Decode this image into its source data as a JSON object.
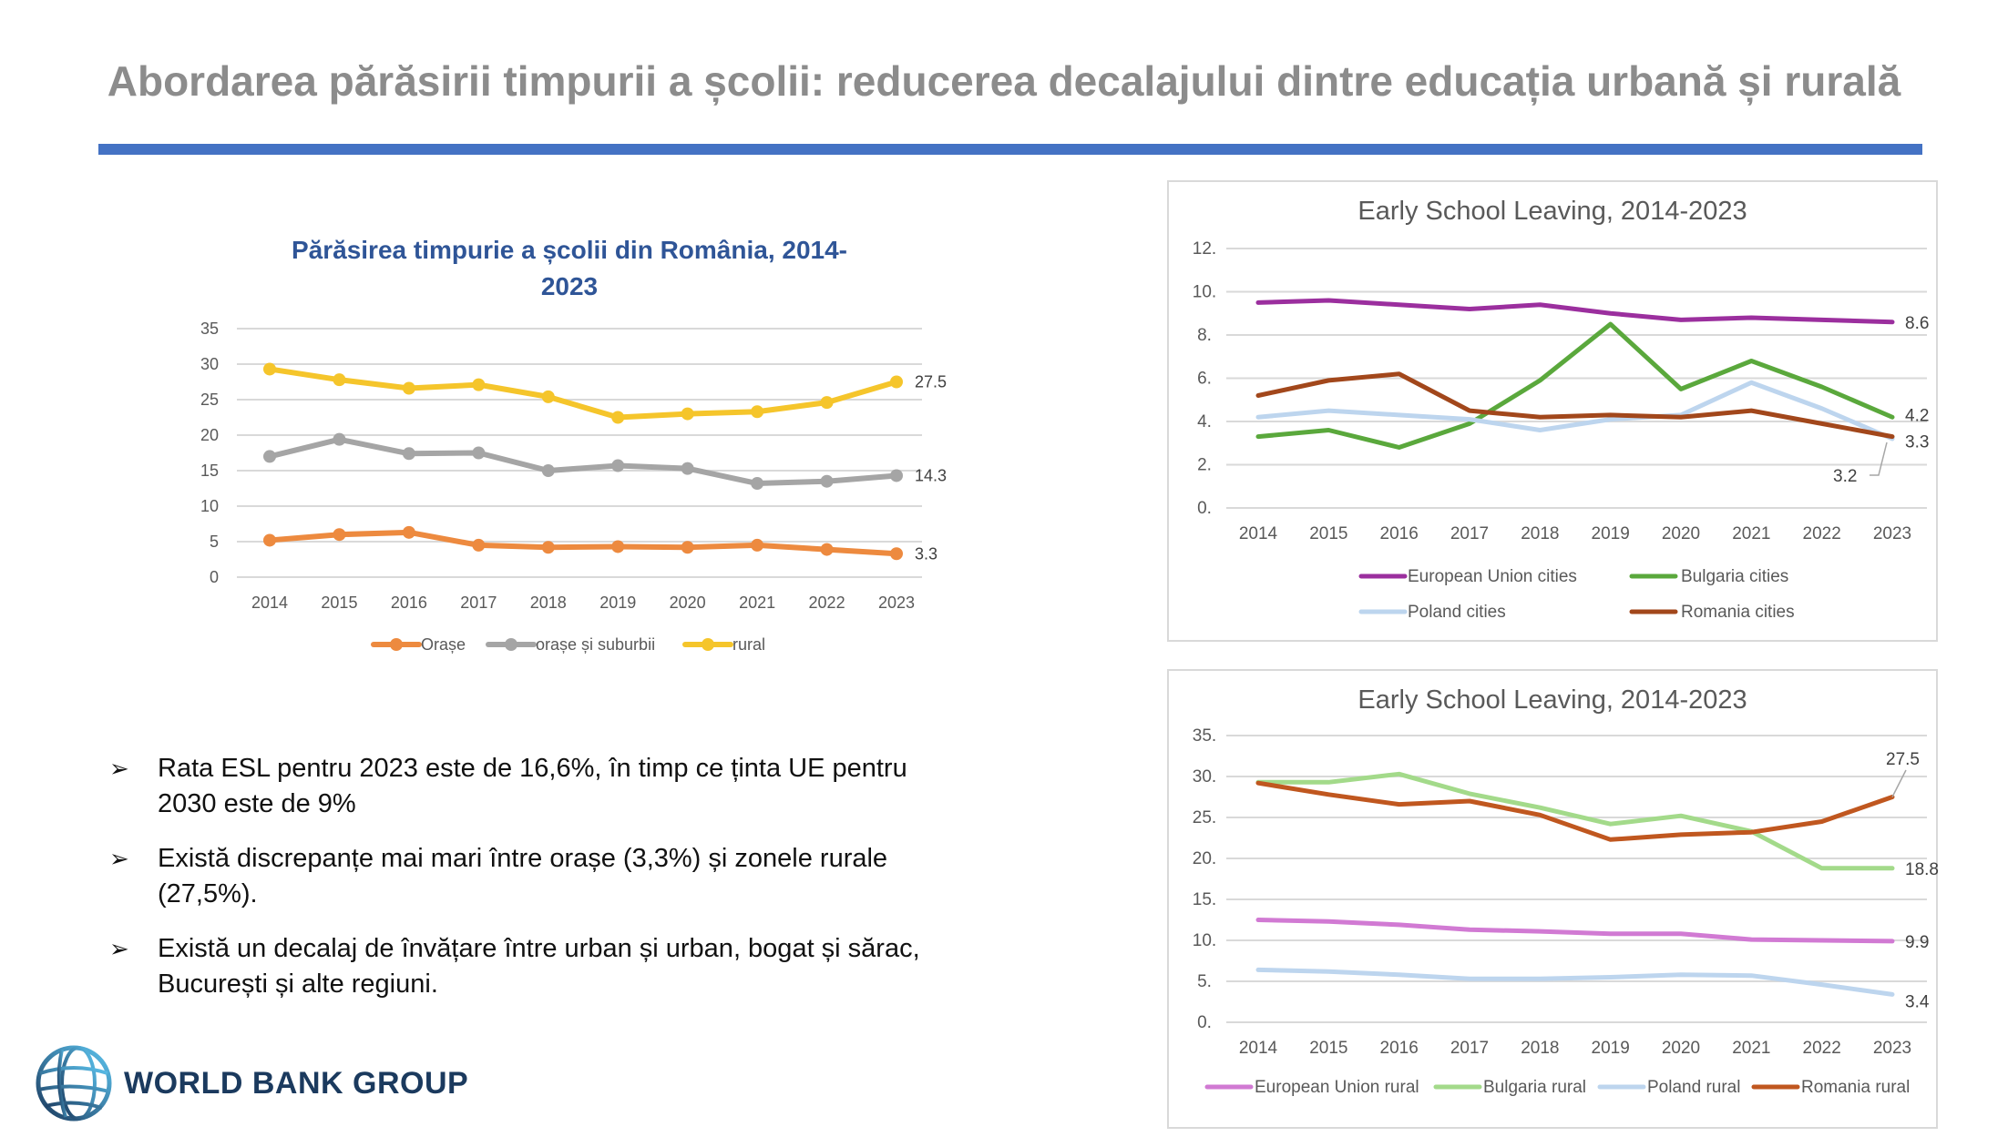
{
  "header": {
    "title": "Abordarea părăsirii timpurii a școlii: reducerea decalajului dintre educația urbană și rurală",
    "accent_color": "#4472c4"
  },
  "left_chart_title": [
    "Părăsirea timpurie a școlii din România, 2014-",
    "2023"
  ],
  "bullets": [
    {
      "icon": "arrow-bullet-icon",
      "lines": [
        "Rata ESL pentru 2023 este de 16,6%, în timp ce ținta UE pentru",
        "2030 este de 9%"
      ]
    },
    {
      "icon": "arrow-bullet-icon",
      "lines": [
        "Există discrepanțe mai mari între orașe (3,3%) și zonele rurale",
        "(27,5%)."
      ]
    },
    {
      "icon": "arrow-bullet-icon",
      "lines": [
        "Există un decalaj de învățare între urban și urban, bogat și sărac,",
        "București și alte regiuni."
      ]
    }
  ],
  "logo": {
    "text": "WORLD BANK GROUP",
    "icon": "globe-icon"
  },
  "chart_data": [
    {
      "type": "line",
      "title": "Părăsirea timpurie a școlii din România, 2014-2023",
      "categories": [
        "2014",
        "2015",
        "2016",
        "2017",
        "2018",
        "2019",
        "2020",
        "2021",
        "2022",
        "2023"
      ],
      "ylim": [
        0,
        35
      ],
      "yticks": [
        "0",
        "5",
        "10",
        "15",
        "20",
        "25",
        "30",
        "35"
      ],
      "grid": true,
      "markers": true,
      "legend_position": "bottom",
      "series": [
        {
          "name": "Orașe",
          "color": "#ed8a3f",
          "values": [
            5.2,
            6.0,
            6.3,
            4.5,
            4.2,
            4.3,
            4.2,
            4.5,
            3.9,
            3.3
          ],
          "end_label": "3.3"
        },
        {
          "name": "orașe și suburbii",
          "color": "#a5a5a5",
          "values": [
            17.0,
            19.4,
            17.4,
            17.5,
            15.0,
            15.7,
            15.3,
            13.2,
            13.5,
            14.3
          ],
          "end_label": "14.3"
        },
        {
          "name": "rural",
          "color": "#f5c52b",
          "values": [
            29.3,
            27.8,
            26.6,
            27.1,
            25.4,
            22.5,
            23.0,
            23.3,
            24.6,
            27.5
          ],
          "end_label": "27.5"
        }
      ]
    },
    {
      "type": "line",
      "title": "Early School Leaving, 2014-2023",
      "categories": [
        "2014",
        "2015",
        "2016",
        "2017",
        "2018",
        "2019",
        "2020",
        "2021",
        "2022",
        "2023"
      ],
      "ylim": [
        0,
        12
      ],
      "yticks": [
        "0.",
        "2.",
        "4.",
        "6.",
        "8.",
        "10.",
        "12."
      ],
      "grid": true,
      "markers": false,
      "legend_position": "bottom",
      "series": [
        {
          "name": "European Union  cities",
          "color": "#9b2f9e",
          "values": [
            9.5,
            9.6,
            9.4,
            9.2,
            9.4,
            9.0,
            8.7,
            8.8,
            8.7,
            8.6
          ],
          "end_label": "8.6"
        },
        {
          "name": "Bulgaria cities",
          "color": "#5aa83c",
          "values": [
            3.3,
            3.6,
            2.8,
            3.9,
            5.9,
            8.5,
            5.5,
            6.8,
            5.6,
            4.2
          ],
          "end_label": "4.2"
        },
        {
          "name": "Poland cities",
          "color": "#bdd5ee",
          "values": [
            4.2,
            4.5,
            4.3,
            4.1,
            3.6,
            4.1,
            4.3,
            5.8,
            4.6,
            3.2
          ],
          "end_label": "3.2"
        },
        {
          "name": "Romania cities",
          "color": "#a2471b",
          "values": [
            5.2,
            5.9,
            6.2,
            4.5,
            4.2,
            4.3,
            4.2,
            4.5,
            3.9,
            3.3
          ],
          "end_label": "3.3"
        }
      ]
    },
    {
      "type": "line",
      "title": "Early School Leaving, 2014-2023",
      "categories": [
        "2014",
        "2015",
        "2016",
        "2017",
        "2018",
        "2019",
        "2020",
        "2021",
        "2022",
        "2023"
      ],
      "ylim": [
        0,
        35
      ],
      "yticks": [
        "0.",
        "5.",
        "10.",
        "15.",
        "20.",
        "25.",
        "30.",
        "35."
      ],
      "grid": true,
      "markers": false,
      "legend_position": "bottom",
      "series": [
        {
          "name": "European Union  rural",
          "color": "#d17ad3",
          "values": [
            12.5,
            12.3,
            11.9,
            11.3,
            11.1,
            10.8,
            10.8,
            10.1,
            10.0,
            9.9
          ],
          "end_label": "9.9"
        },
        {
          "name": "Bulgaria rural",
          "color": "#a3da8a",
          "values": [
            29.3,
            29.3,
            30.3,
            27.9,
            26.2,
            24.2,
            25.2,
            23.3,
            18.8,
            18.8
          ],
          "end_label": "18.8"
        },
        {
          "name": "Poland rural",
          "color": "#bdd5ee",
          "values": [
            6.4,
            6.2,
            5.8,
            5.3,
            5.3,
            5.5,
            5.8,
            5.7,
            4.6,
            3.4
          ],
          "end_label": "3.4"
        },
        {
          "name": "Romania rural",
          "color": "#c0571f",
          "values": [
            29.2,
            27.8,
            26.6,
            27.0,
            25.3,
            22.3,
            22.9,
            23.2,
            24.5,
            27.5
          ],
          "end_label": "27.5"
        }
      ]
    }
  ]
}
